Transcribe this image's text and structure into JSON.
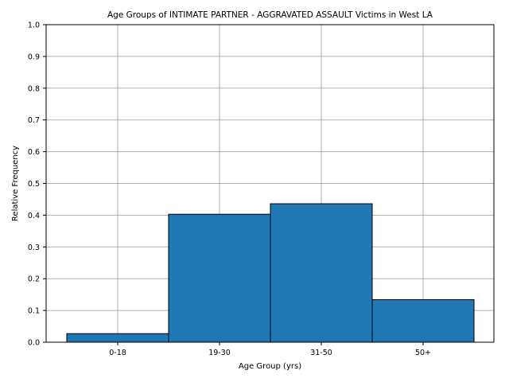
{
  "chart_data": {
    "type": "bar",
    "title": "Age Groups of INTIMATE PARTNER - AGGRAVATED ASSAULT Victims in West LA",
    "xlabel": "Age Group (yrs)",
    "ylabel": "Relative Frequency",
    "categories": [
      "0-18",
      "19-30",
      "31-50",
      "50+"
    ],
    "values": [
      0.027,
      0.403,
      0.436,
      0.134
    ],
    "ylim": [
      0,
      1.0
    ],
    "yticks": [
      "0.0",
      "0.1",
      "0.2",
      "0.3",
      "0.4",
      "0.5",
      "0.6",
      "0.7",
      "0.8",
      "0.9",
      "1.0"
    ],
    "grid": true,
    "bar_color": "#1f77b4",
    "edge_color": "#000000",
    "grid_color": "#b0b0b0"
  }
}
